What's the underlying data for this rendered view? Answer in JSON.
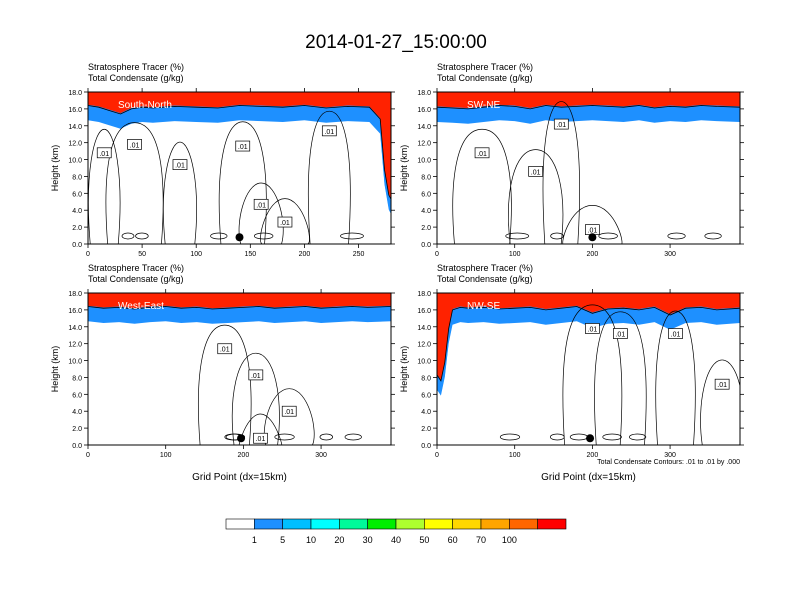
{
  "page": {
    "title": "2014-01-27_15:00:00",
    "contour_note": "Total Condensate Contours: .01 to .01 by .000"
  },
  "chart_data": [
    {
      "type": "heatmap",
      "panel_label": "South-North",
      "field_labels": [
        "Stratosphere Tracer   (%)",
        "Total Condensate   (g/kg)"
      ],
      "xlabel": "",
      "ylabel": "Height (km)",
      "xlim": [
        0,
        280
      ],
      "ylim": [
        0,
        18
      ],
      "x_ticks": [
        "0",
        "50",
        "100",
        "150",
        "200",
        "250"
      ],
      "x_tick_values": [
        0,
        50,
        100,
        150,
        200,
        250
      ],
      "y_ticks": [
        "0.0",
        "2.0",
        "4.0",
        "6.0",
        "8.0",
        "10.0",
        "12.0",
        "14.0",
        "16.0",
        "18.0"
      ],
      "marker": {
        "x": 140,
        "y": 0.8
      },
      "contour_labels": [
        {
          "text": ".01",
          "x": 15,
          "y": 10.8
        },
        {
          "text": ".01",
          "x": 43,
          "y": 11.8
        },
        {
          "text": ".01",
          "x": 85,
          "y": 9.4
        },
        {
          "text": ".01",
          "x": 143,
          "y": 11.6
        },
        {
          "text": ".01",
          "x": 223,
          "y": 13.4
        },
        {
          "text": ".01",
          "x": 160,
          "y": 4.7
        },
        {
          "text": ".01",
          "x": 182,
          "y": 2.6
        }
      ],
      "tracer_profile": {
        "x": [
          0,
          10,
          20,
          30,
          40,
          50,
          60,
          80,
          100,
          120,
          140,
          160,
          180,
          200,
          220,
          240,
          260,
          270,
          274,
          278,
          280
        ],
        "y": [
          15.6,
          15.4,
          15.0,
          14.6,
          15.2,
          15.4,
          15.3,
          15.5,
          15.4,
          15.3,
          15.6,
          15.5,
          15.4,
          15.6,
          15.3,
          15.5,
          15.4,
          14.0,
          8.0,
          5.0,
          4.5
        ]
      }
    },
    {
      "type": "heatmap",
      "panel_label": "SW-NE",
      "field_labels": [
        "Stratosphere Tracer   (%)",
        "Total Condensate   (g/kg)"
      ],
      "xlabel": "",
      "ylabel": "Height (km)",
      "xlim": [
        0,
        390
      ],
      "ylim": [
        0,
        18
      ],
      "x_ticks": [
        "0",
        "100",
        "200",
        "300"
      ],
      "x_tick_values": [
        0,
        100,
        200,
        300
      ],
      "y_ticks": [
        "0.0",
        "2.0",
        "4.0",
        "6.0",
        "8.0",
        "10.0",
        "12.0",
        "14.0",
        "16.0",
        "18.0"
      ],
      "marker": {
        "x": 200,
        "y": 0.8
      },
      "contour_labels": [
        {
          "text": ".01",
          "x": 58,
          "y": 10.8
        },
        {
          "text": ".01",
          "x": 127,
          "y": 8.6
        },
        {
          "text": ".01",
          "x": 160,
          "y": 14.2
        },
        {
          "text": ".01",
          "x": 200,
          "y": 1.7
        }
      ],
      "tracer_profile": {
        "x": [
          0,
          20,
          40,
          60,
          80,
          100,
          120,
          140,
          160,
          180,
          200,
          220,
          240,
          260,
          280,
          300,
          320,
          340,
          360,
          390
        ],
        "y": [
          15.4,
          15.3,
          15.2,
          15.4,
          15.6,
          15.5,
          15.2,
          15.6,
          15.4,
          15.5,
          15.6,
          15.5,
          15.4,
          15.6,
          15.3,
          15.5,
          15.4,
          15.6,
          15.5,
          15.4
        ]
      }
    },
    {
      "type": "heatmap",
      "panel_label": "West-East",
      "field_labels": [
        "Stratosphere Tracer   (%)",
        "Total Condensate   (g/kg)"
      ],
      "xlabel": "Grid Point (dx=15km)",
      "ylabel": "Height (km)",
      "xlim": [
        0,
        390
      ],
      "ylim": [
        0,
        18
      ],
      "x_ticks": [
        "0",
        "100",
        "200",
        "300"
      ],
      "x_tick_values": [
        0,
        100,
        200,
        300
      ],
      "y_ticks": [
        "0.0",
        "2.0",
        "4.0",
        "6.0",
        "8.0",
        "10.0",
        "12.0",
        "14.0",
        "16.0",
        "18.0"
      ],
      "marker": {
        "x": 197,
        "y": 0.8
      },
      "contour_labels": [
        {
          "text": ".01",
          "x": 176,
          "y": 11.4
        },
        {
          "text": ".01",
          "x": 216,
          "y": 8.3
        },
        {
          "text": ".01",
          "x": 259,
          "y": 4.0
        },
        {
          "text": ".01",
          "x": 222,
          "y": 0.8
        }
      ],
      "tracer_profile": {
        "x": [
          0,
          20,
          40,
          60,
          80,
          100,
          120,
          140,
          160,
          180,
          200,
          220,
          240,
          260,
          280,
          300,
          320,
          340,
          360,
          390
        ],
        "y": [
          15.6,
          15.4,
          15.5,
          15.3,
          15.5,
          15.6,
          15.4,
          15.5,
          15.3,
          15.4,
          15.5,
          15.6,
          15.4,
          15.5,
          15.6,
          15.4,
          15.5,
          15.6,
          15.5,
          15.6
        ]
      }
    },
    {
      "type": "heatmap",
      "panel_label": "NW-SE",
      "field_labels": [
        "Stratosphere Tracer   (%)",
        "Total Condensate   (g/kg)"
      ],
      "xlabel": "Grid Point (dx=15km)",
      "ylabel": "Height (km)",
      "xlim": [
        0,
        390
      ],
      "ylim": [
        0,
        18
      ],
      "x_ticks": [
        "0",
        "100",
        "200",
        "300"
      ],
      "x_tick_values": [
        0,
        100,
        200,
        300
      ],
      "y_ticks": [
        "0.0",
        "2.0",
        "4.0",
        "6.0",
        "8.0",
        "10.0",
        "12.0",
        "14.0",
        "16.0",
        "18.0"
      ],
      "marker": {
        "x": 197,
        "y": 0.8
      },
      "contour_labels": [
        {
          "text": ".01",
          "x": 200,
          "y": 13.8
        },
        {
          "text": ".01",
          "x": 236,
          "y": 13.2
        },
        {
          "text": ".01",
          "x": 307,
          "y": 13.2
        },
        {
          "text": ".01",
          "x": 367,
          "y": 7.2
        }
      ],
      "tracer_profile": {
        "x": [
          0,
          5,
          10,
          15,
          20,
          30,
          40,
          60,
          80,
          100,
          120,
          140,
          160,
          180,
          200,
          220,
          240,
          260,
          280,
          300,
          320,
          340,
          360,
          390
        ],
        "y": [
          7.5,
          6.8,
          9.0,
          13.0,
          15.2,
          15.5,
          15.4,
          15.5,
          15.3,
          15.4,
          15.5,
          15.2,
          15.4,
          15.6,
          14.8,
          15.3,
          15.4,
          15.2,
          15.5,
          14.6,
          15.4,
          15.5,
          15.2,
          15.4
        ]
      }
    }
  ],
  "colorbar": {
    "labels": [
      "1",
      "5",
      "10",
      "20",
      "30",
      "40",
      "50",
      "60",
      "70",
      "100"
    ],
    "colors": [
      "#ffffff",
      "#1e90ff",
      "#00bfff",
      "#00ffff",
      "#00fa9a",
      "#00ee00",
      "#adff2f",
      "#ffff00",
      "#ffd700",
      "#ffa500",
      "#ff6600",
      "#ff0000"
    ]
  }
}
